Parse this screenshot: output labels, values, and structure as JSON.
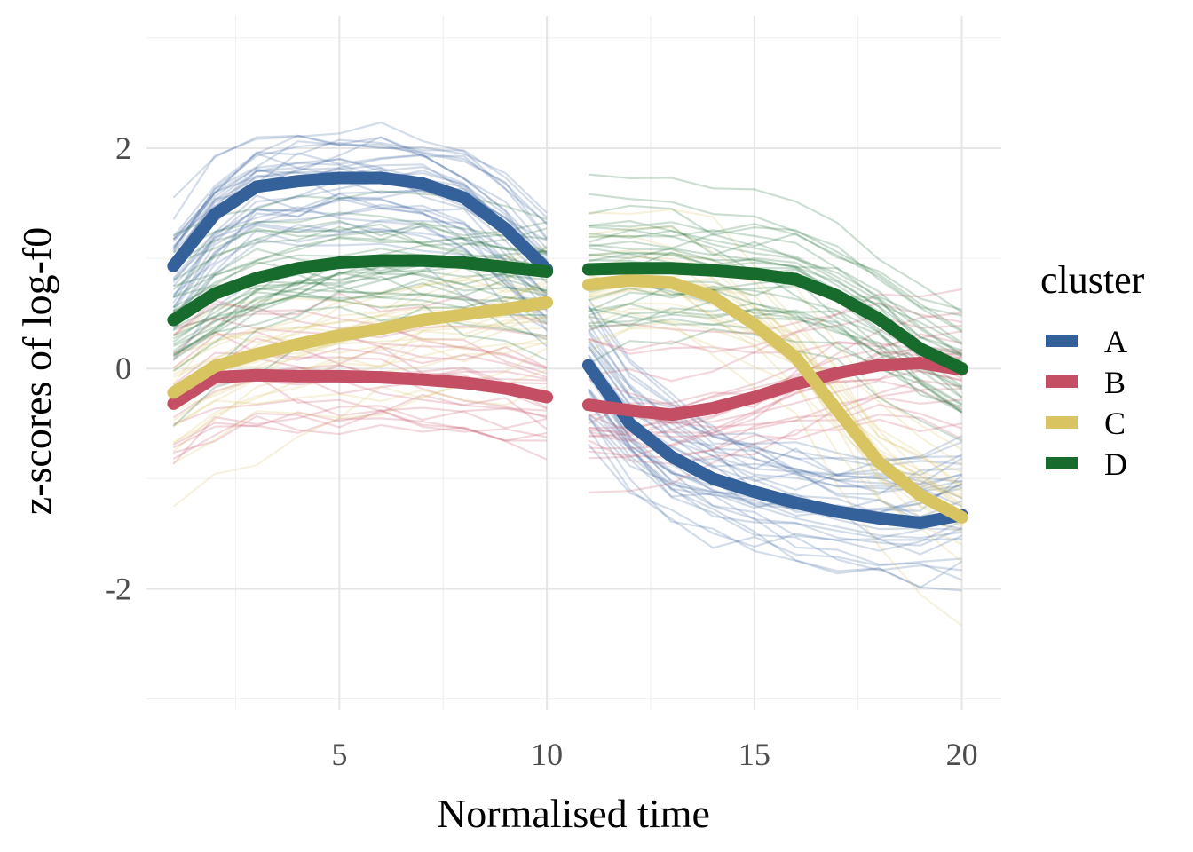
{
  "chart_data": {
    "type": "line",
    "title": "",
    "xlabel": "Normalised time",
    "ylabel": "z-scores of log-f0",
    "xlim": [
      0.35,
      20.95
    ],
    "ylim": [
      -3.1,
      3.2
    ],
    "x_ticks": [
      5,
      10,
      15,
      20
    ],
    "x_minor_ticks": [
      2.5,
      7.5,
      12.5,
      17.5
    ],
    "y_ticks": [
      -2,
      0,
      2
    ],
    "y_minor_ticks": [
      -3,
      -1,
      1,
      3
    ],
    "grid": true,
    "segments": [
      [
        1,
        2,
        3,
        4,
        5,
        6,
        7,
        8,
        9,
        10
      ],
      [
        11,
        12,
        13,
        14,
        15,
        16,
        17,
        18,
        19,
        20
      ]
    ],
    "legend": {
      "title": "cluster",
      "placement": "right"
    },
    "series": [
      {
        "name": "A",
        "color": "#35619b",
        "values": [
          0.93,
          1.4,
          1.65,
          1.7,
          1.73,
          1.73,
          1.68,
          1.55,
          1.27,
          0.9,
          0.03,
          -0.5,
          -0.8,
          -1.0,
          -1.12,
          -1.22,
          -1.3,
          -1.36,
          -1.4,
          -1.33
        ]
      },
      {
        "name": "B",
        "color": "#c44e64",
        "values": [
          -0.32,
          -0.08,
          -0.06,
          -0.07,
          -0.07,
          -0.08,
          -0.1,
          -0.13,
          -0.18,
          -0.26,
          -0.33,
          -0.38,
          -0.42,
          -0.36,
          -0.26,
          -0.14,
          -0.04,
          0.03,
          0.05,
          -0.01
        ]
      },
      {
        "name": "C",
        "color": "#d9c462",
        "values": [
          -0.22,
          0.02,
          0.13,
          0.22,
          0.3,
          0.36,
          0.44,
          0.49,
          0.54,
          0.6,
          0.76,
          0.8,
          0.78,
          0.65,
          0.4,
          0.1,
          -0.38,
          -0.85,
          -1.15,
          -1.35
        ]
      },
      {
        "name": "D",
        "color": "#176b2c",
        "values": [
          0.44,
          0.68,
          0.82,
          0.91,
          0.96,
          0.98,
          0.98,
          0.96,
          0.92,
          0.88,
          0.9,
          0.91,
          0.91,
          0.89,
          0.86,
          0.81,
          0.66,
          0.45,
          0.18,
          0.0
        ]
      }
    ],
    "background_curves": {
      "description_count_per_cluster": [
        34,
        22,
        22,
        30
      ],
      "alpha": 0.22,
      "note": "thin translucent individual trajectories around each cluster mean"
    }
  }
}
